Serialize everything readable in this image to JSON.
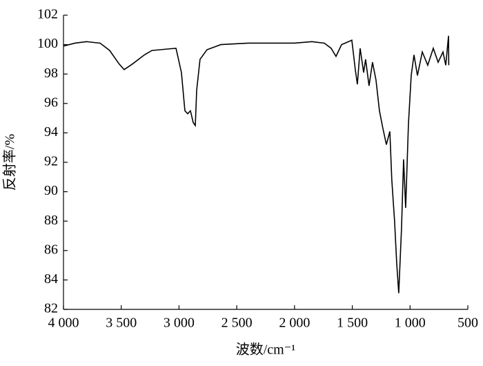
{
  "chart_data": {
    "type": "line",
    "x_label": "波数/cm⁻¹",
    "y_label": "反射率/%",
    "xlim": [
      4000,
      500
    ],
    "ylim": [
      82,
      102
    ],
    "xticks": [
      {
        "value": 4000,
        "label": "4 000"
      },
      {
        "value": 3500,
        "label": "3 500"
      },
      {
        "value": 3000,
        "label": "3 000"
      },
      {
        "value": 2500,
        "label": "2 500"
      },
      {
        "value": 2000,
        "label": "2 000"
      },
      {
        "value": 1500,
        "label": "1 500"
      },
      {
        "value": 1000,
        "label": "1 000"
      },
      500
    ],
    "yticks": [
      82,
      84,
      86,
      88,
      90,
      92,
      94,
      96,
      98,
      100,
      102
    ],
    "series": [
      {
        "color": "#000000",
        "x": [
          4000,
          3900,
          3800,
          3683,
          3600,
          3520,
          3475,
          3400,
          3300,
          3235,
          3100,
          3026,
          2979,
          2949,
          2925,
          2901,
          2877,
          2859,
          2847,
          2818,
          2758,
          2638,
          2400,
          2200,
          2000,
          1850,
          1742,
          1683,
          1641,
          1593,
          1504,
          1474,
          1456,
          1432,
          1402,
          1385,
          1355,
          1325,
          1295,
          1265,
          1235,
          1205,
          1175,
          1158,
          1134,
          1116,
          1098,
          1074,
          1056,
          1038,
          1014,
          990,
          966,
          936,
          894,
          847,
          799,
          757,
          715,
          691,
          667,
          665
        ],
        "values": [
          99.9,
          100.1,
          100.2,
          100.1,
          99.6,
          98.7,
          98.3,
          98.7,
          99.3,
          99.6,
          99.7,
          99.75,
          98.1,
          95.5,
          95.3,
          95.5,
          94.7,
          94.5,
          96.9,
          99.0,
          99.65,
          100.0,
          100.1,
          100.1,
          100.1,
          100.2,
          100.1,
          99.75,
          99.2,
          100.0,
          100.3,
          98.3,
          97.3,
          99.75,
          98.1,
          99.0,
          97.2,
          98.8,
          97.6,
          95.5,
          94.3,
          93.2,
          94.1,
          90.8,
          88.0,
          85.2,
          83.1,
          87.5,
          92.2,
          88.9,
          94.6,
          97.9,
          99.3,
          97.9,
          99.5,
          98.6,
          99.75,
          98.8,
          99.5,
          98.6,
          100.6,
          98.6
        ]
      }
    ]
  }
}
